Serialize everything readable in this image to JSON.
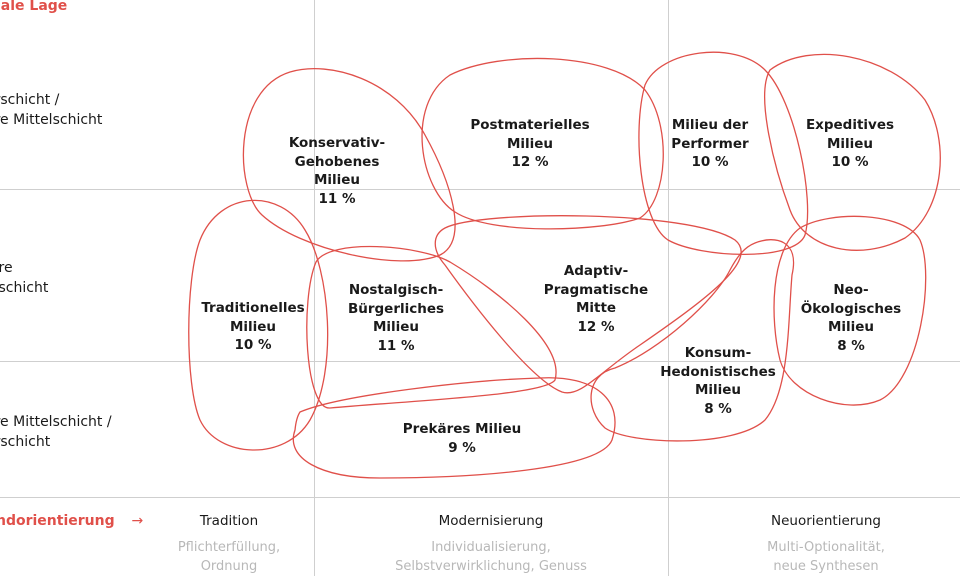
{
  "axes": {
    "y_title": "iale Lage",
    "x_title": "ndorientierung",
    "x_arrow": "→",
    "accent_color": "#e0504a"
  },
  "rows": [
    {
      "line1": "erschicht /",
      "line2": "ere Mittelschicht"
    },
    {
      "line1": "lere",
      "line2": "elschicht"
    },
    {
      "line1": "ere Mittelschicht /",
      "line2": "erschicht"
    }
  ],
  "columns": [
    {
      "title": "Tradition",
      "line1": "Pflichterfüllung,",
      "line2": "Ordnung"
    },
    {
      "title": "Modernisierung",
      "line1": "Individualisierung,",
      "line2": "Selbstverwirklichung, Genuss"
    },
    {
      "title": "Neuorientierung",
      "line1": "Multi-Optionalität,",
      "line2": "neue Synthesen"
    }
  ],
  "milieus": [
    {
      "id": "konservativ",
      "lines": [
        "Konservativ-",
        "Gehobenes",
        "Milieu"
      ],
      "share": "11 %"
    },
    {
      "id": "postmateriell",
      "lines": [
        "Postmaterielles",
        "Milieu"
      ],
      "share": "12 %"
    },
    {
      "id": "performer",
      "lines": [
        "Milieu der",
        "Performer"
      ],
      "share": "10 %"
    },
    {
      "id": "expeditiv",
      "lines": [
        "Expeditives",
        "Milieu"
      ],
      "share": "10 %"
    },
    {
      "id": "traditionell",
      "lines": [
        "Traditionelles",
        "Milieu"
      ],
      "share": "10 %"
    },
    {
      "id": "nostalgisch",
      "lines": [
        "Nostalgisch-",
        "Bürgerliches",
        "Milieu"
      ],
      "share": "11 %"
    },
    {
      "id": "adaptiv",
      "lines": [
        "Adaptiv-",
        "Pragmatische",
        "Mitte"
      ],
      "share": "12 %"
    },
    {
      "id": "neooeko",
      "lines": [
        "Neo-",
        "Ökologisches",
        "Milieu"
      ],
      "share": "8 %"
    },
    {
      "id": "konsum",
      "lines": [
        "Konsum-",
        "Hedonistisches",
        "Milieu"
      ],
      "share": "8 %"
    },
    {
      "id": "prekaer",
      "lines": [
        "Prekäres Milieu"
      ],
      "share": "9 %"
    }
  ]
}
